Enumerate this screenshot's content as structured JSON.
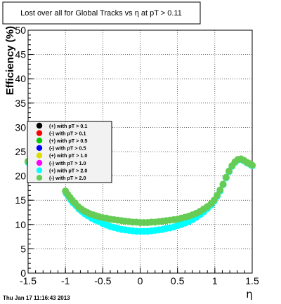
{
  "chart_data": {
    "type": "scatter",
    "title": "Lost over all for Global Tracks vs η at pT > 0.11",
    "xlabel": "η",
    "ylabel": "Efficiency (%)",
    "xlim": [
      -1.5,
      1.5
    ],
    "ylim": [
      0,
      50
    ],
    "xticks": [
      -1.5,
      -1,
      -0.5,
      0,
      0.5,
      1,
      1.5
    ],
    "xtick_labels": [
      "-1.5",
      "-1",
      "-0.5",
      "0",
      "0.5",
      "1",
      "1.5"
    ],
    "yticks": [
      0,
      5,
      10,
      15,
      20,
      25,
      30,
      35,
      40,
      45,
      50
    ],
    "ytick_labels": [
      "0",
      "5",
      "10",
      "15",
      "20",
      "25",
      "30",
      "35",
      "40",
      "45",
      "50"
    ],
    "grid": true,
    "legend_placement": "left-middle",
    "legend": [
      {
        "label": "(+) with pT > 0.1",
        "color": "#000000"
      },
      {
        "label": "(-) with pT > 0.1",
        "color": "#ff0000"
      },
      {
        "label": "(+) with pT > 0.5",
        "color": "#00cc00"
      },
      {
        "label": "(-) with pT > 0.5",
        "color": "#0000ff"
      },
      {
        "label": "(+) with pT > 1.0",
        "color": "#dddd00"
      },
      {
        "label": "(-) with pT > 1.0",
        "color": "#ff00ff"
      },
      {
        "label": "(+) with pT > 2.0",
        "color": "#00ffff"
      },
      {
        "label": "(-) with pT > 2.0",
        "color": "#66cc55"
      }
    ],
    "series": [
      {
        "color": "#00ffff",
        "points": [
          [
            -1.5,
            22.8
          ],
          [
            -1.45,
            22.2
          ],
          [
            -1.4,
            21.6
          ],
          [
            -1.35,
            21.1
          ],
          [
            -1.3,
            20.6
          ],
          [
            -1.25,
            20.3
          ],
          [
            -1.2,
            20.0
          ],
          [
            -1.15,
            19.7
          ],
          [
            -1.1,
            19.6
          ],
          [
            -0.99,
            16.4
          ],
          [
            -0.96,
            15.8
          ],
          [
            -0.93,
            15.1
          ],
          [
            -0.9,
            14.5
          ],
          [
            -0.86,
            13.9
          ],
          [
            -0.82,
            13.2
          ],
          [
            -0.78,
            12.7
          ],
          [
            -0.74,
            12.2
          ],
          [
            -0.7,
            11.8
          ],
          [
            -0.65,
            11.3
          ],
          [
            -0.6,
            10.9
          ],
          [
            -0.55,
            10.6
          ],
          [
            -0.5,
            10.2
          ],
          [
            -0.45,
            9.9
          ],
          [
            -0.4,
            9.6
          ],
          [
            -0.35,
            9.4
          ],
          [
            -0.3,
            9.2
          ],
          [
            -0.25,
            9.0
          ],
          [
            -0.2,
            8.9
          ],
          [
            -0.15,
            8.8
          ],
          [
            -0.1,
            8.7
          ],
          [
            -0.05,
            8.6
          ],
          [
            0.0,
            8.6
          ],
          [
            0.05,
            8.6
          ],
          [
            0.1,
            8.6
          ],
          [
            0.15,
            8.7
          ],
          [
            0.2,
            8.8
          ],
          [
            0.25,
            8.9
          ],
          [
            0.3,
            9.0
          ],
          [
            0.35,
            9.2
          ],
          [
            0.4,
            9.3
          ],
          [
            0.45,
            9.5
          ],
          [
            0.5,
            9.8
          ],
          [
            0.55,
            10.0
          ],
          [
            0.6,
            10.3
          ],
          [
            0.65,
            10.6
          ],
          [
            0.7,
            11.0
          ],
          [
            0.75,
            11.5
          ],
          [
            0.8,
            12.0
          ],
          [
            0.85,
            12.6
          ],
          [
            0.9,
            13.3
          ],
          [
            0.95,
            14.0
          ],
          [
            0.99,
            14.8
          ],
          [
            1.03,
            15.8
          ],
          [
            1.07,
            16.9
          ],
          [
            1.11,
            18.2
          ],
          [
            1.15,
            19.6
          ],
          [
            1.19,
            20.9
          ],
          [
            1.23,
            22.0
          ],
          [
            1.27,
            22.8
          ],
          [
            1.31,
            23.3
          ],
          [
            1.35,
            23.4
          ],
          [
            1.39,
            23.1
          ],
          [
            1.43,
            22.7
          ],
          [
            1.47,
            22.4
          ],
          [
            1.5,
            22.1
          ]
        ]
      },
      {
        "color": "#66cc55",
        "points": [
          [
            -1.5,
            23.0
          ],
          [
            -1.45,
            22.4
          ],
          [
            -1.4,
            21.8
          ],
          [
            -1.35,
            21.3
          ],
          [
            -1.3,
            20.8
          ],
          [
            -1.25,
            20.4
          ],
          [
            -1.2,
            20.1
          ],
          [
            -1.15,
            19.8
          ],
          [
            -1.1,
            19.7
          ],
          [
            -1.0,
            16.9
          ],
          [
            -0.97,
            16.2
          ],
          [
            -0.94,
            15.6
          ],
          [
            -0.91,
            15.0
          ],
          [
            -0.87,
            14.4
          ],
          [
            -0.83,
            13.7
          ],
          [
            -0.79,
            13.2
          ],
          [
            -0.75,
            12.8
          ],
          [
            -0.71,
            12.5
          ],
          [
            -0.67,
            12.2
          ],
          [
            -0.63,
            12.0
          ],
          [
            -0.59,
            11.8
          ],
          [
            -0.55,
            11.6
          ],
          [
            -0.5,
            11.4
          ],
          [
            -0.45,
            11.3
          ],
          [
            -0.4,
            11.1
          ],
          [
            -0.35,
            11.0
          ],
          [
            -0.3,
            10.9
          ],
          [
            -0.25,
            10.8
          ],
          [
            -0.2,
            10.7
          ],
          [
            -0.15,
            10.6
          ],
          [
            -0.1,
            10.5
          ],
          [
            -0.05,
            10.5
          ],
          [
            0.0,
            10.4
          ],
          [
            0.05,
            10.4
          ],
          [
            0.1,
            10.4
          ],
          [
            0.15,
            10.5
          ],
          [
            0.2,
            10.5
          ],
          [
            0.25,
            10.6
          ],
          [
            0.3,
            10.7
          ],
          [
            0.35,
            10.8
          ],
          [
            0.4,
            10.9
          ],
          [
            0.45,
            11.0
          ],
          [
            0.5,
            11.1
          ],
          [
            0.55,
            11.3
          ],
          [
            0.6,
            11.5
          ],
          [
            0.65,
            11.7
          ],
          [
            0.7,
            12.0
          ],
          [
            0.75,
            12.3
          ],
          [
            0.8,
            12.7
          ],
          [
            0.85,
            13.2
          ],
          [
            0.9,
            13.7
          ],
          [
            0.95,
            14.3
          ],
          [
            0.99,
            15.0
          ],
          [
            1.03,
            16.0
          ],
          [
            1.07,
            17.1
          ],
          [
            1.11,
            18.3
          ],
          [
            1.15,
            19.7
          ],
          [
            1.19,
            21.0
          ],
          [
            1.23,
            22.1
          ],
          [
            1.27,
            22.9
          ],
          [
            1.31,
            23.4
          ],
          [
            1.35,
            23.5
          ],
          [
            1.39,
            23.2
          ],
          [
            1.43,
            22.8
          ],
          [
            1.47,
            22.5
          ],
          [
            1.5,
            22.2
          ]
        ]
      }
    ]
  },
  "footer": {
    "timestamp": "Thu Jan 17 11:16:43 2013"
  }
}
